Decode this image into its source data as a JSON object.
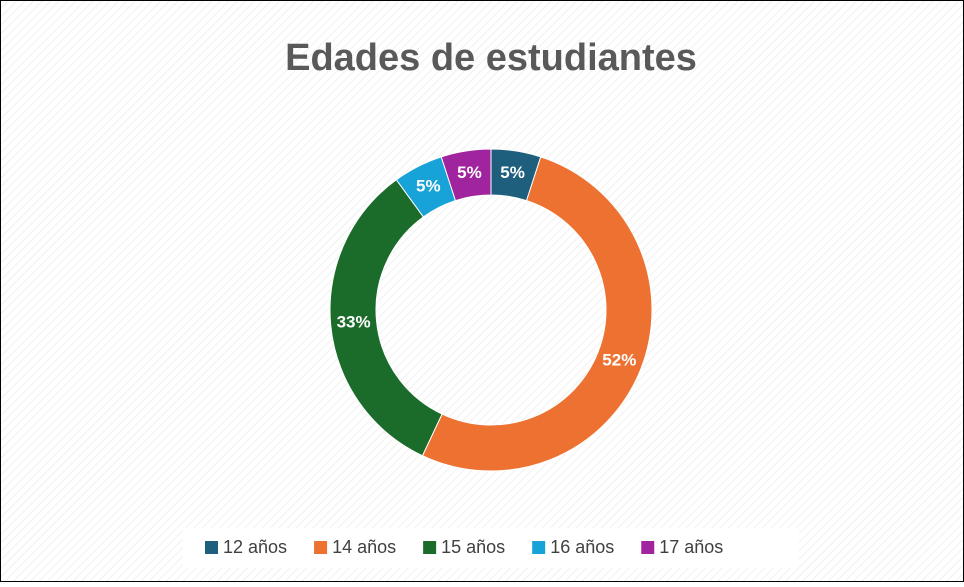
{
  "chart_data": {
    "type": "donut",
    "title": "Edades de estudiantes",
    "categories": [
      "12 años",
      "14 años",
      "15 años",
      "16 años",
      "17 años"
    ],
    "values": [
      5,
      52,
      33,
      5,
      5
    ],
    "value_labels": [
      "5%",
      "52%",
      "33%",
      "5%",
      "5%"
    ],
    "colors": [
      "#1d5f7d",
      "#ed7232",
      "#1b6b2b",
      "#17a2d8",
      "#a0249d"
    ],
    "legend": "bottom"
  }
}
